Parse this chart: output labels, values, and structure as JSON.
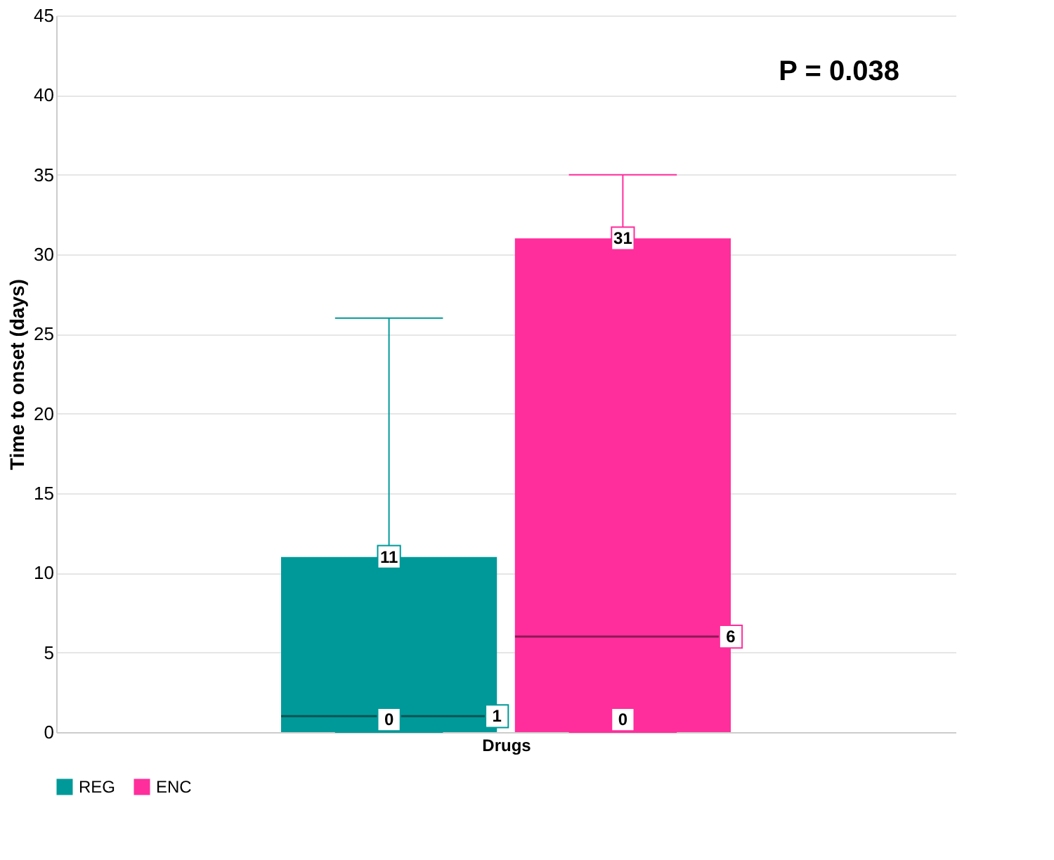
{
  "chart_data": {
    "type": "box",
    "categories": [
      null
    ],
    "xlabel": "Drugs",
    "ylabel": "Time to onset (days)",
    "series": [
      {
        "name": "REG",
        "color": "#009999",
        "boxes": [
          {
            "low": 0,
            "q1": 0,
            "median": 1,
            "q3": 11,
            "high": 26
          }
        ],
        "value_labels": [
          [
            "0",
            "1",
            "11"
          ]
        ]
      },
      {
        "name": "ENC",
        "color": "#ff2e9c",
        "boxes": [
          {
            "low": 0,
            "q1": 0,
            "median": 6,
            "q3": 31,
            "high": 35
          }
        ],
        "value_labels": [
          [
            "0",
            "6",
            "31"
          ]
        ]
      }
    ],
    "ylim": [
      0,
      45
    ],
    "yticks": [
      0,
      5,
      10,
      15,
      20,
      25,
      30,
      35,
      40,
      45
    ],
    "grid": "y",
    "legend": "bottom",
    "annotations": [
      "P = 0.038"
    ]
  }
}
